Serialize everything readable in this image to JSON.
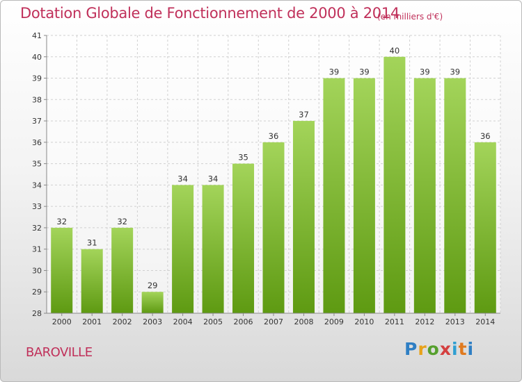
{
  "header": {
    "title": "Dotation Globale de Fonctionnement de 2000 à 2014",
    "unit": "(en milliers d'€)"
  },
  "footer": {
    "commune": "BAROVILLE",
    "logo": "Proxiti",
    "logo_colors": [
      "#2f7fc4",
      "#e8a21a",
      "#56a02e",
      "#d43f3f",
      "#2f9fd1",
      "#e07a1f"
    ]
  },
  "colors": {
    "bar_top": "#a3d45a",
    "bar_bottom": "#5e9a12",
    "grid": "#d0d0d0",
    "text": "#c0305a"
  },
  "chart_data": {
    "type": "bar",
    "title": "Dotation Globale de Fonctionnement de 2000 à 2014",
    "subtitle": "(en milliers d'€)",
    "xlabel": "",
    "ylabel": "",
    "categories": [
      "2000",
      "2001",
      "2002",
      "2003",
      "2004",
      "2005",
      "2006",
      "2007",
      "2008",
      "2009",
      "2010",
      "2011",
      "2012",
      "2013",
      "2014"
    ],
    "values": [
      32,
      31,
      32,
      29,
      34,
      34,
      35,
      36,
      37,
      39,
      39,
      40,
      39,
      39,
      36
    ],
    "ylim": [
      28,
      41
    ],
    "yticks": [
      28,
      29,
      30,
      31,
      32,
      33,
      34,
      35,
      36,
      37,
      38,
      39,
      40,
      41
    ],
    "grid": true,
    "legend": "none"
  }
}
